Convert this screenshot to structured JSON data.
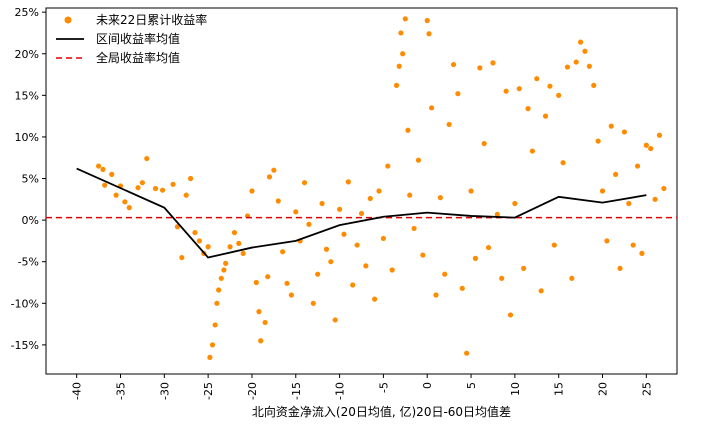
{
  "chart_data": {
    "type": "scatter",
    "title": "",
    "xlabel": "北向资金净流入(20日均值, 亿)20日-60日均值差",
    "ylabel": "",
    "xlim": [
      -43.5,
      28.5
    ],
    "ylim": [
      -18.5,
      25.5
    ],
    "x_ticks": [
      -40,
      -35,
      -30,
      -25,
      -20,
      -15,
      -10,
      -5,
      0,
      5,
      10,
      15,
      20,
      25
    ],
    "x_tick_labels": [
      "-40",
      "-35",
      "-30",
      "-25",
      "-20",
      "-15",
      "-10",
      "-5",
      "0",
      "5",
      "10",
      "15",
      "20",
      "25"
    ],
    "y_ticks": [
      -15,
      -10,
      -5,
      0,
      5,
      10,
      15,
      20,
      25
    ],
    "y_tick_labels": [
      "-15%",
      "-10%",
      "-5%",
      "0%",
      "5%",
      "10%",
      "15%",
      "20%",
      "25%"
    ],
    "grid": false,
    "legend_position": "top-left",
    "colors": {
      "scatter": "#ff8c00",
      "mean_line": "#000000",
      "global_mean": "#e00000"
    },
    "legend": [
      {
        "label": "未来22日累计收益率",
        "type": "scatter"
      },
      {
        "label": "区间收益率均值",
        "type": "line"
      },
      {
        "label": "全局收益率均值",
        "type": "dashed-line"
      }
    ],
    "series": [
      {
        "name": "区间收益率均值",
        "type": "line",
        "x": [
          -40,
          -30,
          -25,
          -20,
          -15,
          -10,
          -5,
          0,
          5,
          10,
          15,
          20,
          25
        ],
        "y": [
          6.2,
          1.5,
          -4.5,
          -3.3,
          -2.5,
          -0.6,
          0.4,
          0.9,
          0.5,
          0.3,
          2.8,
          2.1,
          3.0
        ]
      },
      {
        "name": "全局收益率均值",
        "type": "hline",
        "y": 0.3
      }
    ],
    "scatter_points": [
      [
        -37.5,
        6.5
      ],
      [
        -37,
        6.1
      ],
      [
        -36.8,
        4.2
      ],
      [
        -36,
        5.5
      ],
      [
        -35.5,
        3.0
      ],
      [
        -35,
        4.1
      ],
      [
        -34.5,
        2.2
      ],
      [
        -34,
        1.5
      ],
      [
        -33,
        3.9
      ],
      [
        -32.5,
        4.5
      ],
      [
        -32,
        7.4
      ],
      [
        -31,
        3.8
      ],
      [
        -30.2,
        3.6
      ],
      [
        -29,
        4.3
      ],
      [
        -28.5,
        -0.8
      ],
      [
        -28,
        -4.5
      ],
      [
        -27.5,
        3.0
      ],
      [
        -27,
        5.0
      ],
      [
        -26.5,
        -1.5
      ],
      [
        -26,
        -2.5
      ],
      [
        -25.5,
        -4.0
      ],
      [
        -25,
        -3.2
      ],
      [
        -24.8,
        -16.5
      ],
      [
        -24.5,
        -15.0
      ],
      [
        -24.2,
        -12.6
      ],
      [
        -24,
        -10.0
      ],
      [
        -23.8,
        -8.4
      ],
      [
        -23.5,
        -7.0
      ],
      [
        -23.2,
        -6.0
      ],
      [
        -23,
        -5.2
      ],
      [
        -22.5,
        -3.2
      ],
      [
        -22,
        -1.5
      ],
      [
        -21.5,
        -2.8
      ],
      [
        -21,
        -4.0
      ],
      [
        -20.5,
        0.5
      ],
      [
        -20,
        3.5
      ],
      [
        -19.5,
        -7.5
      ],
      [
        -19.2,
        -11.0
      ],
      [
        -19,
        -14.5
      ],
      [
        -18.5,
        -12.3
      ],
      [
        -18.2,
        -6.8
      ],
      [
        -18,
        5.2
      ],
      [
        -17.5,
        6.0
      ],
      [
        -17,
        2.3
      ],
      [
        -16.5,
        -3.8
      ],
      [
        -16,
        -7.6
      ],
      [
        -15.5,
        -9.0
      ],
      [
        -15,
        1.0
      ],
      [
        -14.5,
        -2.5
      ],
      [
        -14,
        4.5
      ],
      [
        -13.5,
        -0.5
      ],
      [
        -13,
        -10.0
      ],
      [
        -12.5,
        -6.5
      ],
      [
        -12,
        2.0
      ],
      [
        -11.5,
        -3.5
      ],
      [
        -11,
        -5.0
      ],
      [
        -10.5,
        -12.0
      ],
      [
        -10,
        1.3
      ],
      [
        -9.5,
        -1.7
      ],
      [
        -9,
        4.6
      ],
      [
        -8.5,
        -7.8
      ],
      [
        -8,
        -3.0
      ],
      [
        -7.5,
        0.8
      ],
      [
        -7,
        -5.5
      ],
      [
        -6.5,
        2.6
      ],
      [
        -6,
        -9.5
      ],
      [
        -5.5,
        3.5
      ],
      [
        -5,
        -2.2
      ],
      [
        -4.5,
        6.5
      ],
      [
        -4,
        -6.0
      ],
      [
        -3.5,
        16.2
      ],
      [
        -3.2,
        18.5
      ],
      [
        -3,
        22.5
      ],
      [
        -2.8,
        20.0
      ],
      [
        -2.5,
        24.2
      ],
      [
        -2.2,
        10.8
      ],
      [
        -2,
        3.0
      ],
      [
        -1.5,
        -1.0
      ],
      [
        -1,
        7.2
      ],
      [
        -0.5,
        -4.2
      ],
      [
        0,
        24.0
      ],
      [
        0.2,
        22.4
      ],
      [
        0.5,
        13.5
      ],
      [
        1,
        -9.0
      ],
      [
        1.5,
        2.7
      ],
      [
        2,
        -6.5
      ],
      [
        2.5,
        11.5
      ],
      [
        3,
        18.7
      ],
      [
        3.5,
        15.2
      ],
      [
        4,
        -8.2
      ],
      [
        4.5,
        -16.0
      ],
      [
        5,
        3.5
      ],
      [
        5.5,
        -4.6
      ],
      [
        6,
        18.3
      ],
      [
        6.5,
        9.2
      ],
      [
        7,
        -3.3
      ],
      [
        7.5,
        18.9
      ],
      [
        8,
        0.7
      ],
      [
        8.5,
        -7.0
      ],
      [
        9,
        15.5
      ],
      [
        9.5,
        -11.4
      ],
      [
        10,
        2.0
      ],
      [
        10.5,
        15.8
      ],
      [
        11,
        -5.8
      ],
      [
        11.5,
        13.4
      ],
      [
        12,
        8.3
      ],
      [
        12.5,
        17.0
      ],
      [
        13,
        -8.5
      ],
      [
        13.5,
        12.5
      ],
      [
        14,
        16.1
      ],
      [
        14.5,
        -3.0
      ],
      [
        15,
        15.0
      ],
      [
        15.5,
        6.9
      ],
      [
        16,
        18.4
      ],
      [
        16.5,
        -7.0
      ],
      [
        17,
        19.0
      ],
      [
        17.5,
        21.4
      ],
      [
        18,
        20.3
      ],
      [
        18.5,
        18.5
      ],
      [
        19,
        16.2
      ],
      [
        19.5,
        9.5
      ],
      [
        20,
        3.5
      ],
      [
        20.5,
        -2.5
      ],
      [
        21,
        11.3
      ],
      [
        21.5,
        5.5
      ],
      [
        22,
        -5.8
      ],
      [
        22.5,
        10.6
      ],
      [
        23,
        2.0
      ],
      [
        23.5,
        -3.0
      ],
      [
        24,
        6.5
      ],
      [
        24.5,
        -4.0
      ],
      [
        25,
        9.0
      ],
      [
        25.5,
        8.6
      ],
      [
        26,
        2.5
      ],
      [
        26.5,
        10.2
      ],
      [
        27,
        3.8
      ]
    ]
  }
}
